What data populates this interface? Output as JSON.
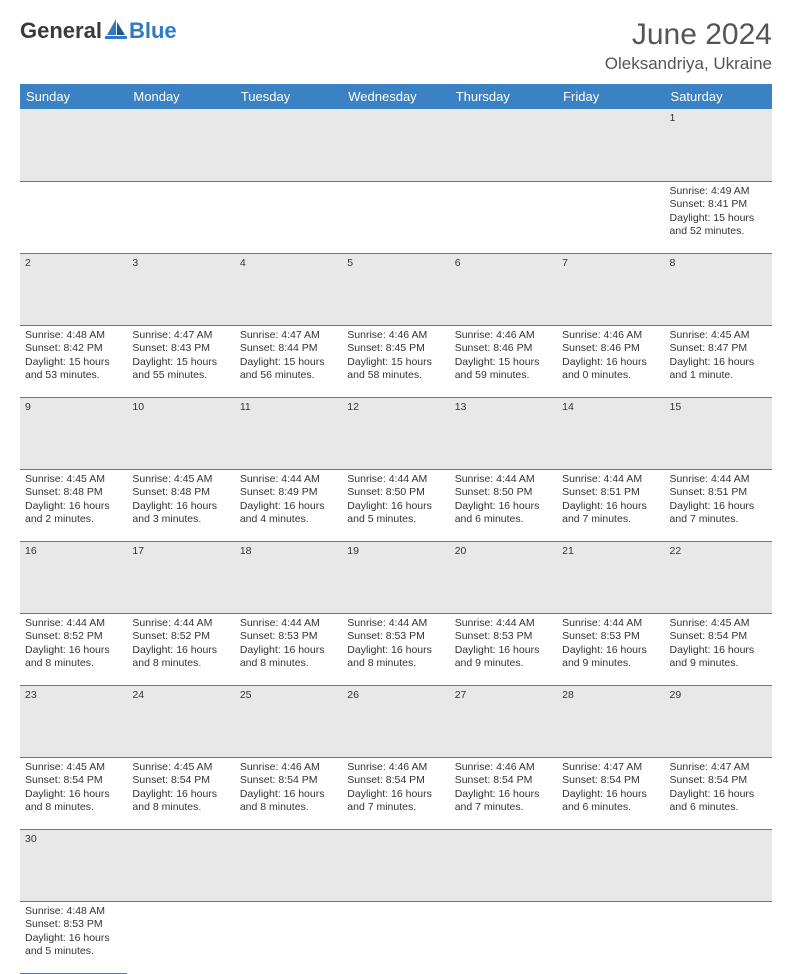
{
  "brand": {
    "general": "General",
    "blue": "Blue"
  },
  "title": {
    "month": "June 2024",
    "location": "Oleksandriya, Ukraine"
  },
  "colors": {
    "header_bg": "#3b82c4",
    "header_text": "#ffffff",
    "daynum_bg": "#e8e8e8",
    "border": "#3b82c4",
    "logo_dark": "#3a3a3a",
    "logo_blue": "#2f7ac0"
  },
  "weekdays": [
    "Sunday",
    "Monday",
    "Tuesday",
    "Wednesday",
    "Thursday",
    "Friday",
    "Saturday"
  ],
  "weeks": [
    {
      "nums": [
        "",
        "",
        "",
        "",
        "",
        "",
        "1"
      ],
      "cells": [
        null,
        null,
        null,
        null,
        null,
        null,
        {
          "sunrise": "4:49 AM",
          "sunset": "8:41 PM",
          "daylight": "15 hours and 52 minutes."
        }
      ]
    },
    {
      "nums": [
        "2",
        "3",
        "4",
        "5",
        "6",
        "7",
        "8"
      ],
      "cells": [
        {
          "sunrise": "4:48 AM",
          "sunset": "8:42 PM",
          "daylight": "15 hours and 53 minutes."
        },
        {
          "sunrise": "4:47 AM",
          "sunset": "8:43 PM",
          "daylight": "15 hours and 55 minutes."
        },
        {
          "sunrise": "4:47 AM",
          "sunset": "8:44 PM",
          "daylight": "15 hours and 56 minutes."
        },
        {
          "sunrise": "4:46 AM",
          "sunset": "8:45 PM",
          "daylight": "15 hours and 58 minutes."
        },
        {
          "sunrise": "4:46 AM",
          "sunset": "8:46 PM",
          "daylight": "15 hours and 59 minutes."
        },
        {
          "sunrise": "4:46 AM",
          "sunset": "8:46 PM",
          "daylight": "16 hours and 0 minutes."
        },
        {
          "sunrise": "4:45 AM",
          "sunset": "8:47 PM",
          "daylight": "16 hours and 1 minute."
        }
      ]
    },
    {
      "nums": [
        "9",
        "10",
        "11",
        "12",
        "13",
        "14",
        "15"
      ],
      "cells": [
        {
          "sunrise": "4:45 AM",
          "sunset": "8:48 PM",
          "daylight": "16 hours and 2 minutes."
        },
        {
          "sunrise": "4:45 AM",
          "sunset": "8:48 PM",
          "daylight": "16 hours and 3 minutes."
        },
        {
          "sunrise": "4:44 AM",
          "sunset": "8:49 PM",
          "daylight": "16 hours and 4 minutes."
        },
        {
          "sunrise": "4:44 AM",
          "sunset": "8:50 PM",
          "daylight": "16 hours and 5 minutes."
        },
        {
          "sunrise": "4:44 AM",
          "sunset": "8:50 PM",
          "daylight": "16 hours and 6 minutes."
        },
        {
          "sunrise": "4:44 AM",
          "sunset": "8:51 PM",
          "daylight": "16 hours and 7 minutes."
        },
        {
          "sunrise": "4:44 AM",
          "sunset": "8:51 PM",
          "daylight": "16 hours and 7 minutes."
        }
      ]
    },
    {
      "nums": [
        "16",
        "17",
        "18",
        "19",
        "20",
        "21",
        "22"
      ],
      "cells": [
        {
          "sunrise": "4:44 AM",
          "sunset": "8:52 PM",
          "daylight": "16 hours and 8 minutes."
        },
        {
          "sunrise": "4:44 AM",
          "sunset": "8:52 PM",
          "daylight": "16 hours and 8 minutes."
        },
        {
          "sunrise": "4:44 AM",
          "sunset": "8:53 PM",
          "daylight": "16 hours and 8 minutes."
        },
        {
          "sunrise": "4:44 AM",
          "sunset": "8:53 PM",
          "daylight": "16 hours and 8 minutes."
        },
        {
          "sunrise": "4:44 AM",
          "sunset": "8:53 PM",
          "daylight": "16 hours and 9 minutes."
        },
        {
          "sunrise": "4:44 AM",
          "sunset": "8:53 PM",
          "daylight": "16 hours and 9 minutes."
        },
        {
          "sunrise": "4:45 AM",
          "sunset": "8:54 PM",
          "daylight": "16 hours and 9 minutes."
        }
      ]
    },
    {
      "nums": [
        "23",
        "24",
        "25",
        "26",
        "27",
        "28",
        "29"
      ],
      "cells": [
        {
          "sunrise": "4:45 AM",
          "sunset": "8:54 PM",
          "daylight": "16 hours and 8 minutes."
        },
        {
          "sunrise": "4:45 AM",
          "sunset": "8:54 PM",
          "daylight": "16 hours and 8 minutes."
        },
        {
          "sunrise": "4:46 AM",
          "sunset": "8:54 PM",
          "daylight": "16 hours and 8 minutes."
        },
        {
          "sunrise": "4:46 AM",
          "sunset": "8:54 PM",
          "daylight": "16 hours and 7 minutes."
        },
        {
          "sunrise": "4:46 AM",
          "sunset": "8:54 PM",
          "daylight": "16 hours and 7 minutes."
        },
        {
          "sunrise": "4:47 AM",
          "sunset": "8:54 PM",
          "daylight": "16 hours and 6 minutes."
        },
        {
          "sunrise": "4:47 AM",
          "sunset": "8:54 PM",
          "daylight": "16 hours and 6 minutes."
        }
      ]
    },
    {
      "nums": [
        "30",
        "",
        "",
        "",
        "",
        "",
        ""
      ],
      "cells": [
        {
          "sunrise": "4:48 AM",
          "sunset": "8:53 PM",
          "daylight": "16 hours and 5 minutes."
        },
        null,
        null,
        null,
        null,
        null,
        null
      ]
    }
  ],
  "labels": {
    "sunrise": "Sunrise: ",
    "sunset": "Sunset: ",
    "daylight": "Daylight: "
  }
}
